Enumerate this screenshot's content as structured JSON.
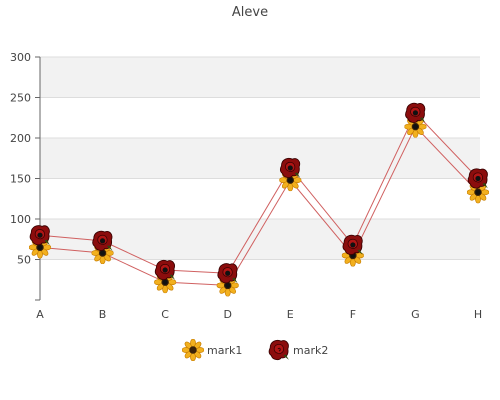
{
  "chart_data": {
    "type": "line",
    "title": "Aleve",
    "categories": [
      "A",
      "B",
      "C",
      "D",
      "E",
      "F",
      "G",
      "H"
    ],
    "yticks": [
      "0",
      "50",
      "100",
      "150",
      "200",
      "250",
      "300"
    ],
    "ylim": [
      0,
      300
    ],
    "grid": true,
    "legend_position": "bottom",
    "series": [
      {
        "name": "mark1",
        "values": [
          65,
          58,
          22,
          18,
          148,
          55,
          214,
          133
        ],
        "color": "#d06060",
        "marker_icon": "sunflower-icon"
      },
      {
        "name": "mark2",
        "values": [
          80,
          73,
          37,
          33,
          163,
          68,
          231,
          150
        ],
        "color": "#d06060",
        "marker_icon": "red-rose-icon"
      }
    ],
    "colors": {
      "band": "#f2f2f2",
      "grid": "#dddddd",
      "axis": "#666666",
      "text": "#444444"
    }
  }
}
